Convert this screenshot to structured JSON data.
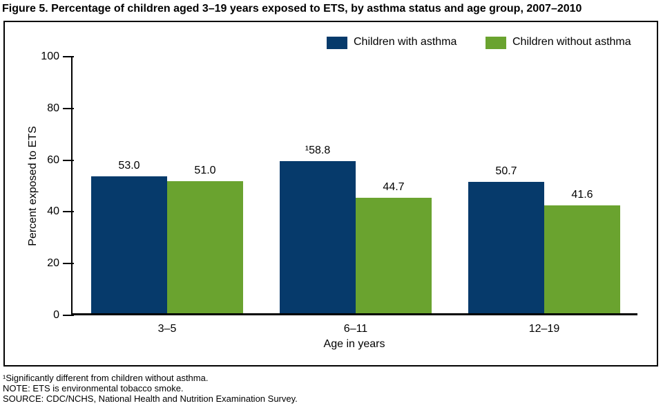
{
  "page": {
    "title": "Figure 5. Percentage of children aged 3–19 years exposed to ETS, by asthma status and age group, 2007–2010"
  },
  "chart_data": {
    "type": "bar",
    "title": "Figure 5. Percentage of children aged 3–19 years exposed to ETS, by asthma status and age group, 2007–2010",
    "categories": [
      "3–5",
      "6–11",
      "12–19"
    ],
    "series": [
      {
        "name": "Children with asthma",
        "color": "#063A6B",
        "values": [
          53.0,
          58.8,
          50.7
        ],
        "labels": [
          "53.0",
          "¹58.8",
          "50.7"
        ]
      },
      {
        "name": "Children without asthma",
        "color": "#6AA32F",
        "values": [
          51.0,
          44.7,
          41.6
        ],
        "labels": [
          "51.0",
          "44.7",
          "41.6"
        ]
      }
    ],
    "xlabel": "Age in years",
    "ylabel": "Percent exposed to ETS",
    "ylim": [
      0,
      100
    ],
    "yticks": [
      0,
      20,
      40,
      60,
      80,
      100
    ],
    "grid": false,
    "legend_position": "top-inside",
    "footnotes": [
      "¹Significantly different from children without asthma.",
      "NOTE: ETS is environmental tobacco smoke.",
      "SOURCE: CDC/NCHS, National Health and Nutrition Examination Survey."
    ]
  }
}
